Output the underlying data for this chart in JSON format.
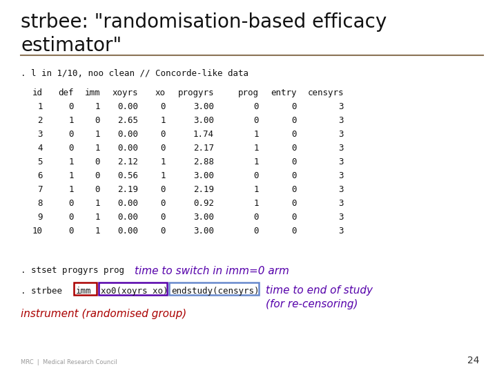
{
  "title_line1": "strbee: \"randomisation-based efficacy",
  "title_line2": "estimator\"",
  "bg_color": "#ffffff",
  "title_color": "#111111",
  "title_fontsize": 20,
  "separator_color": "#8B7355",
  "command_line": ". l in 1/10, noo clean // Concorde-like data",
  "table_header": [
    "id",
    "def",
    "imm",
    "xoyrs",
    "xo",
    "progyrs",
    "prog",
    "entry",
    "censyrs"
  ],
  "table_data": [
    [
      "1",
      "0",
      "1",
      "0.00",
      "0",
      "3.00",
      "0",
      "0",
      "3"
    ],
    [
      "2",
      "1",
      "0",
      "2.65",
      "1",
      "3.00",
      "0",
      "0",
      "3"
    ],
    [
      "3",
      "0",
      "1",
      "0.00",
      "0",
      "1.74",
      "1",
      "0",
      "3"
    ],
    [
      "4",
      "0",
      "1",
      "0.00",
      "0",
      "2.17",
      "1",
      "0",
      "3"
    ],
    [
      "5",
      "1",
      "0",
      "2.12",
      "1",
      "2.88",
      "1",
      "0",
      "3"
    ],
    [
      "6",
      "1",
      "0",
      "0.56",
      "1",
      "3.00",
      "0",
      "0",
      "3"
    ],
    [
      "7",
      "1",
      "0",
      "2.19",
      "0",
      "2.19",
      "1",
      "0",
      "3"
    ],
    [
      "8",
      "0",
      "1",
      "0.00",
      "0",
      "0.92",
      "1",
      "0",
      "3"
    ],
    [
      "9",
      "0",
      "1",
      "0.00",
      "0",
      "3.00",
      "0",
      "0",
      "3"
    ],
    [
      "10",
      "0",
      "1",
      "0.00",
      "0",
      "3.00",
      "0",
      "0",
      "3"
    ]
  ],
  "stset_line": ". stset progyrs prog",
  "stset_annotation": "time to switch in imm=0 arm",
  "strbee_prefix": ". strbee ",
  "imm_box_text": "imm",
  "xo0_box_text": "xo0(xoyrs xo)",
  "endstudy_box_text": "endstudy(censyrs)",
  "strbee_annotation": "time to end of study\n(for re-censoring)",
  "instrument_text": "instrument (randomised group)",
  "page_number": "24",
  "mono_fontsize": 9,
  "imm_box_color": "#aa0000",
  "xo0_box_color": "#5500aa",
  "endstudy_box_color": "#6688cc",
  "annotation_color": "#5500aa",
  "instrument_color": "#aa0000",
  "right_annotation_color": "#5500aa",
  "mrc_text": "MRC  |  Medical Research Council",
  "mrc_color": "#999999"
}
